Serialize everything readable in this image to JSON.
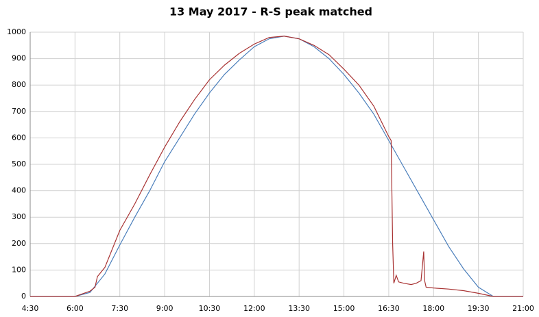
{
  "chart_data": {
    "type": "line",
    "title": "13 May 2017 - R-S peak matched",
    "xlim": [
      4.5,
      21
    ],
    "ylim": [
      0,
      1000
    ],
    "xticks": [
      {
        "value": 4.5,
        "label": "4:30"
      },
      {
        "value": 6,
        "label": "6:00"
      },
      {
        "value": 7.5,
        "label": "7:30"
      },
      {
        "value": 9,
        "label": "9:00"
      },
      {
        "value": 10.5,
        "label": "10:30"
      },
      {
        "value": 12,
        "label": "12:00"
      },
      {
        "value": 13.5,
        "label": "13:30"
      },
      {
        "value": 15,
        "label": "15:00"
      },
      {
        "value": 16.5,
        "label": "16:30"
      },
      {
        "value": 18,
        "label": "18:00"
      },
      {
        "value": 19.5,
        "label": "19:30"
      },
      {
        "value": 21,
        "label": "21:00"
      }
    ],
    "yticks": [
      0,
      100,
      200,
      300,
      400,
      500,
      600,
      700,
      800,
      900,
      1000
    ],
    "grid": true,
    "series": [
      {
        "color": "#4a7ebb",
        "x": [
          4.5,
          5,
          5.5,
          6,
          6.5,
          7,
          7.5,
          8,
          8.5,
          9,
          9.5,
          10,
          10.5,
          11,
          11.5,
          12,
          12.5,
          13,
          13.5,
          14,
          14.5,
          15,
          15.5,
          16,
          16.5,
          17,
          17.5,
          18,
          18.5,
          19,
          19.5,
          20,
          20.5,
          21
        ],
        "values": [
          0,
          0,
          0,
          0,
          15,
          85,
          195,
          300,
          400,
          510,
          600,
          690,
          770,
          840,
          895,
          945,
          975,
          985,
          975,
          945,
          900,
          840,
          770,
          690,
          590,
          490,
          390,
          290,
          190,
          105,
          35,
          0,
          0,
          0
        ]
      },
      {
        "color": "#a83232",
        "x": [
          4.5,
          5,
          5.5,
          6,
          6.5,
          6.67,
          6.75,
          7,
          7.5,
          8,
          8.5,
          9,
          9.5,
          10,
          10.5,
          11,
          11.5,
          12,
          12.5,
          13,
          13.5,
          14,
          14.5,
          15,
          15.5,
          16,
          16.5,
          16.58,
          16.63,
          16.67,
          16.75,
          16.83,
          17,
          17.25,
          17.42,
          17.58,
          17.67,
          17.7,
          17.75,
          18,
          18.5,
          19,
          19.5,
          20,
          20.5,
          21
        ],
        "values": [
          0,
          0,
          0,
          0,
          20,
          35,
          75,
          110,
          250,
          350,
          460,
          565,
          660,
          745,
          820,
          875,
          920,
          955,
          980,
          985,
          975,
          950,
          915,
          860,
          800,
          720,
          605,
          590,
          200,
          50,
          80,
          55,
          50,
          45,
          50,
          60,
          170,
          60,
          35,
          32,
          28,
          22,
          12,
          0,
          0,
          0
        ]
      }
    ]
  }
}
